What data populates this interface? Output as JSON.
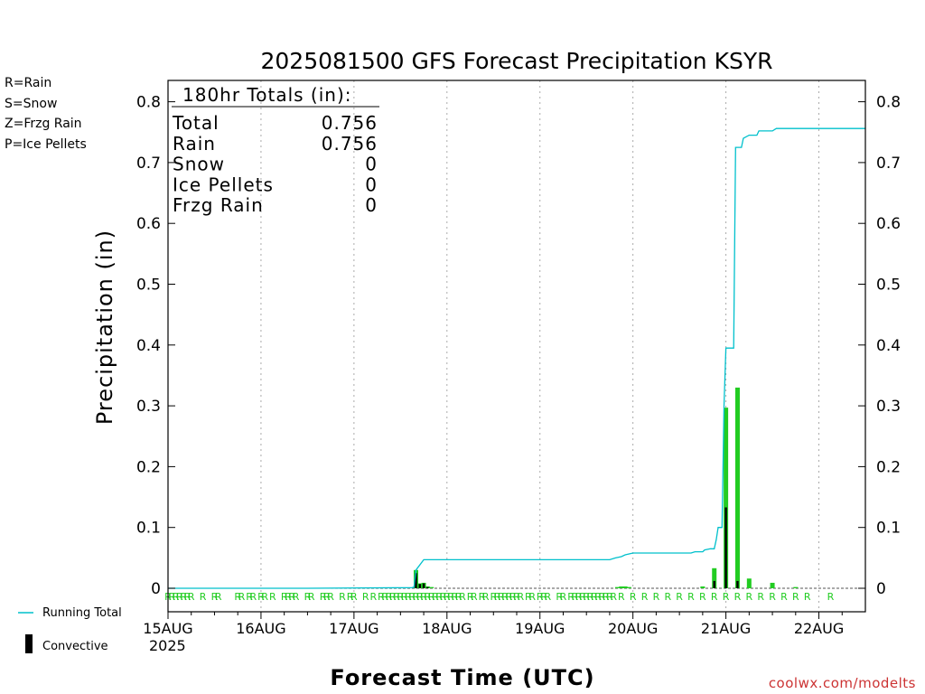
{
  "chart_data": {
    "type": "bar",
    "title": "2025081500 GFS Forecast Precipitation KSYR",
    "xlabel": "Forecast Time (UTC)",
    "ylabel": "Precipitation (in)",
    "ylim": [
      0,
      0.83
    ],
    "xlim_hours": [
      0,
      180
    ],
    "y_ticks": [
      "0",
      "0.1",
      "0.2",
      "0.3",
      "0.4",
      "0.5",
      "0.6",
      "0.7",
      "0.8"
    ],
    "x_ticks": [
      {
        "label": "15AUG",
        "hour": 0
      },
      {
        "label": "16AUG",
        "hour": 24
      },
      {
        "label": "17AUG",
        "hour": 48
      },
      {
        "label": "18AUG",
        "hour": 72
      },
      {
        "label": "19AUG",
        "hour": 96
      },
      {
        "label": "20AUG",
        "hour": 120
      },
      {
        "label": "21AUG",
        "hour": 144
      },
      {
        "label": "22AUG",
        "hour": 168
      }
    ],
    "year_label": "2025",
    "grid": "vertical dotted at day boundaries",
    "legend_types": [
      {
        "text": "R=Rain",
        "color": "#22cc22"
      },
      {
        "text": "S=Snow",
        "color": "#3344ee"
      },
      {
        "text": "Z=Frzg Rain",
        "color": "#ee8833"
      },
      {
        "text": "P=Ice Pellets",
        "color": "#ee22aa"
      }
    ],
    "legend_series": {
      "running_total": "Running Total",
      "convective": "Convective"
    },
    "totals": {
      "header": "180hr Totals (in):",
      "rows": [
        {
          "label": "Total",
          "value": "0.756"
        },
        {
          "label": "Rain",
          "value": "0.756"
        },
        {
          "label": "Snow",
          "value": "0"
        },
        {
          "label": "Ice Pellets",
          "value": "0"
        },
        {
          "label": "Frzg Rain",
          "value": "0"
        }
      ]
    },
    "series": [
      {
        "name": "Running Total",
        "color": "#00c0cc",
        "points": [
          [
            0,
            0
          ],
          [
            36,
            0
          ],
          [
            63,
            0.001
          ],
          [
            63.5,
            0.002
          ],
          [
            64,
            0.03
          ],
          [
            66,
            0.047
          ],
          [
            114,
            0.047
          ],
          [
            115.5,
            0.05
          ],
          [
            117,
            0.052
          ],
          [
            118,
            0.055
          ],
          [
            120,
            0.058
          ],
          [
            135,
            0.058
          ],
          [
            136,
            0.06
          ],
          [
            138,
            0.06
          ],
          [
            138.5,
            0.063
          ],
          [
            140,
            0.065
          ],
          [
            141,
            0.065
          ],
          [
            141.5,
            0.08
          ],
          [
            142,
            0.1
          ],
          [
            143,
            0.1
          ],
          [
            143.5,
            0.3
          ],
          [
            144,
            0.395
          ],
          [
            146,
            0.395
          ],
          [
            146.5,
            0.725
          ],
          [
            148,
            0.725
          ],
          [
            148.5,
            0.74
          ],
          [
            150,
            0.745
          ],
          [
            152,
            0.745
          ],
          [
            152.5,
            0.752
          ],
          [
            156,
            0.752
          ],
          [
            157,
            0.756
          ],
          [
            180,
            0.756
          ]
        ]
      }
    ],
    "bars_total": [
      {
        "hour": 64,
        "value": 0.03
      },
      {
        "hour": 65,
        "value": 0.008
      },
      {
        "hour": 66,
        "value": 0.009
      },
      {
        "hour": 67,
        "value": 0.003
      },
      {
        "hour": 68,
        "value": 0.002
      },
      {
        "hour": 116,
        "value": 0.002
      },
      {
        "hour": 117,
        "value": 0.003
      },
      {
        "hour": 118,
        "value": 0.003
      },
      {
        "hour": 119,
        "value": 0.002
      },
      {
        "hour": 138,
        "value": 0.003
      },
      {
        "hour": 141,
        "value": 0.033
      },
      {
        "hour": 144,
        "value": 0.297
      },
      {
        "hour": 147,
        "value": 0.33
      },
      {
        "hour": 150,
        "value": 0.016
      },
      {
        "hour": 156,
        "value": 0.009
      },
      {
        "hour": 162,
        "value": 0.002
      }
    ],
    "bars_convective": [
      {
        "hour": 64,
        "value": 0.025
      },
      {
        "hour": 65,
        "value": 0.007
      },
      {
        "hour": 66,
        "value": 0.008
      },
      {
        "hour": 67,
        "value": 0.002
      },
      {
        "hour": 141,
        "value": 0.012
      },
      {
        "hour": 144,
        "value": 0.133
      },
      {
        "hour": 147,
        "value": 0.012
      }
    ],
    "ptype_marks": {
      "letter": "R",
      "hours": [
        0,
        1,
        2,
        3,
        4,
        5,
        6,
        9,
        12,
        13,
        18,
        19,
        21,
        22,
        24,
        25,
        27,
        30,
        31,
        32,
        33,
        36,
        37,
        40,
        41,
        42,
        45,
        47,
        48,
        51,
        53,
        55,
        56,
        57,
        58,
        59,
        60,
        61,
        62,
        63,
        64,
        65,
        66,
        67,
        68,
        69,
        70,
        71,
        72,
        73,
        74,
        75,
        76,
        78,
        79,
        81,
        82,
        84,
        85,
        86,
        87,
        88,
        89,
        90,
        91,
        93,
        94,
        96,
        97,
        98,
        101,
        102,
        104,
        105,
        106,
        107,
        108,
        109,
        110,
        111,
        112,
        113,
        114,
        115,
        117,
        120,
        123,
        126,
        129,
        132,
        135,
        138,
        141,
        144,
        147,
        150,
        153,
        156,
        159,
        162,
        165,
        171
      ]
    },
    "watermark": "coolwx.com/modelts"
  }
}
